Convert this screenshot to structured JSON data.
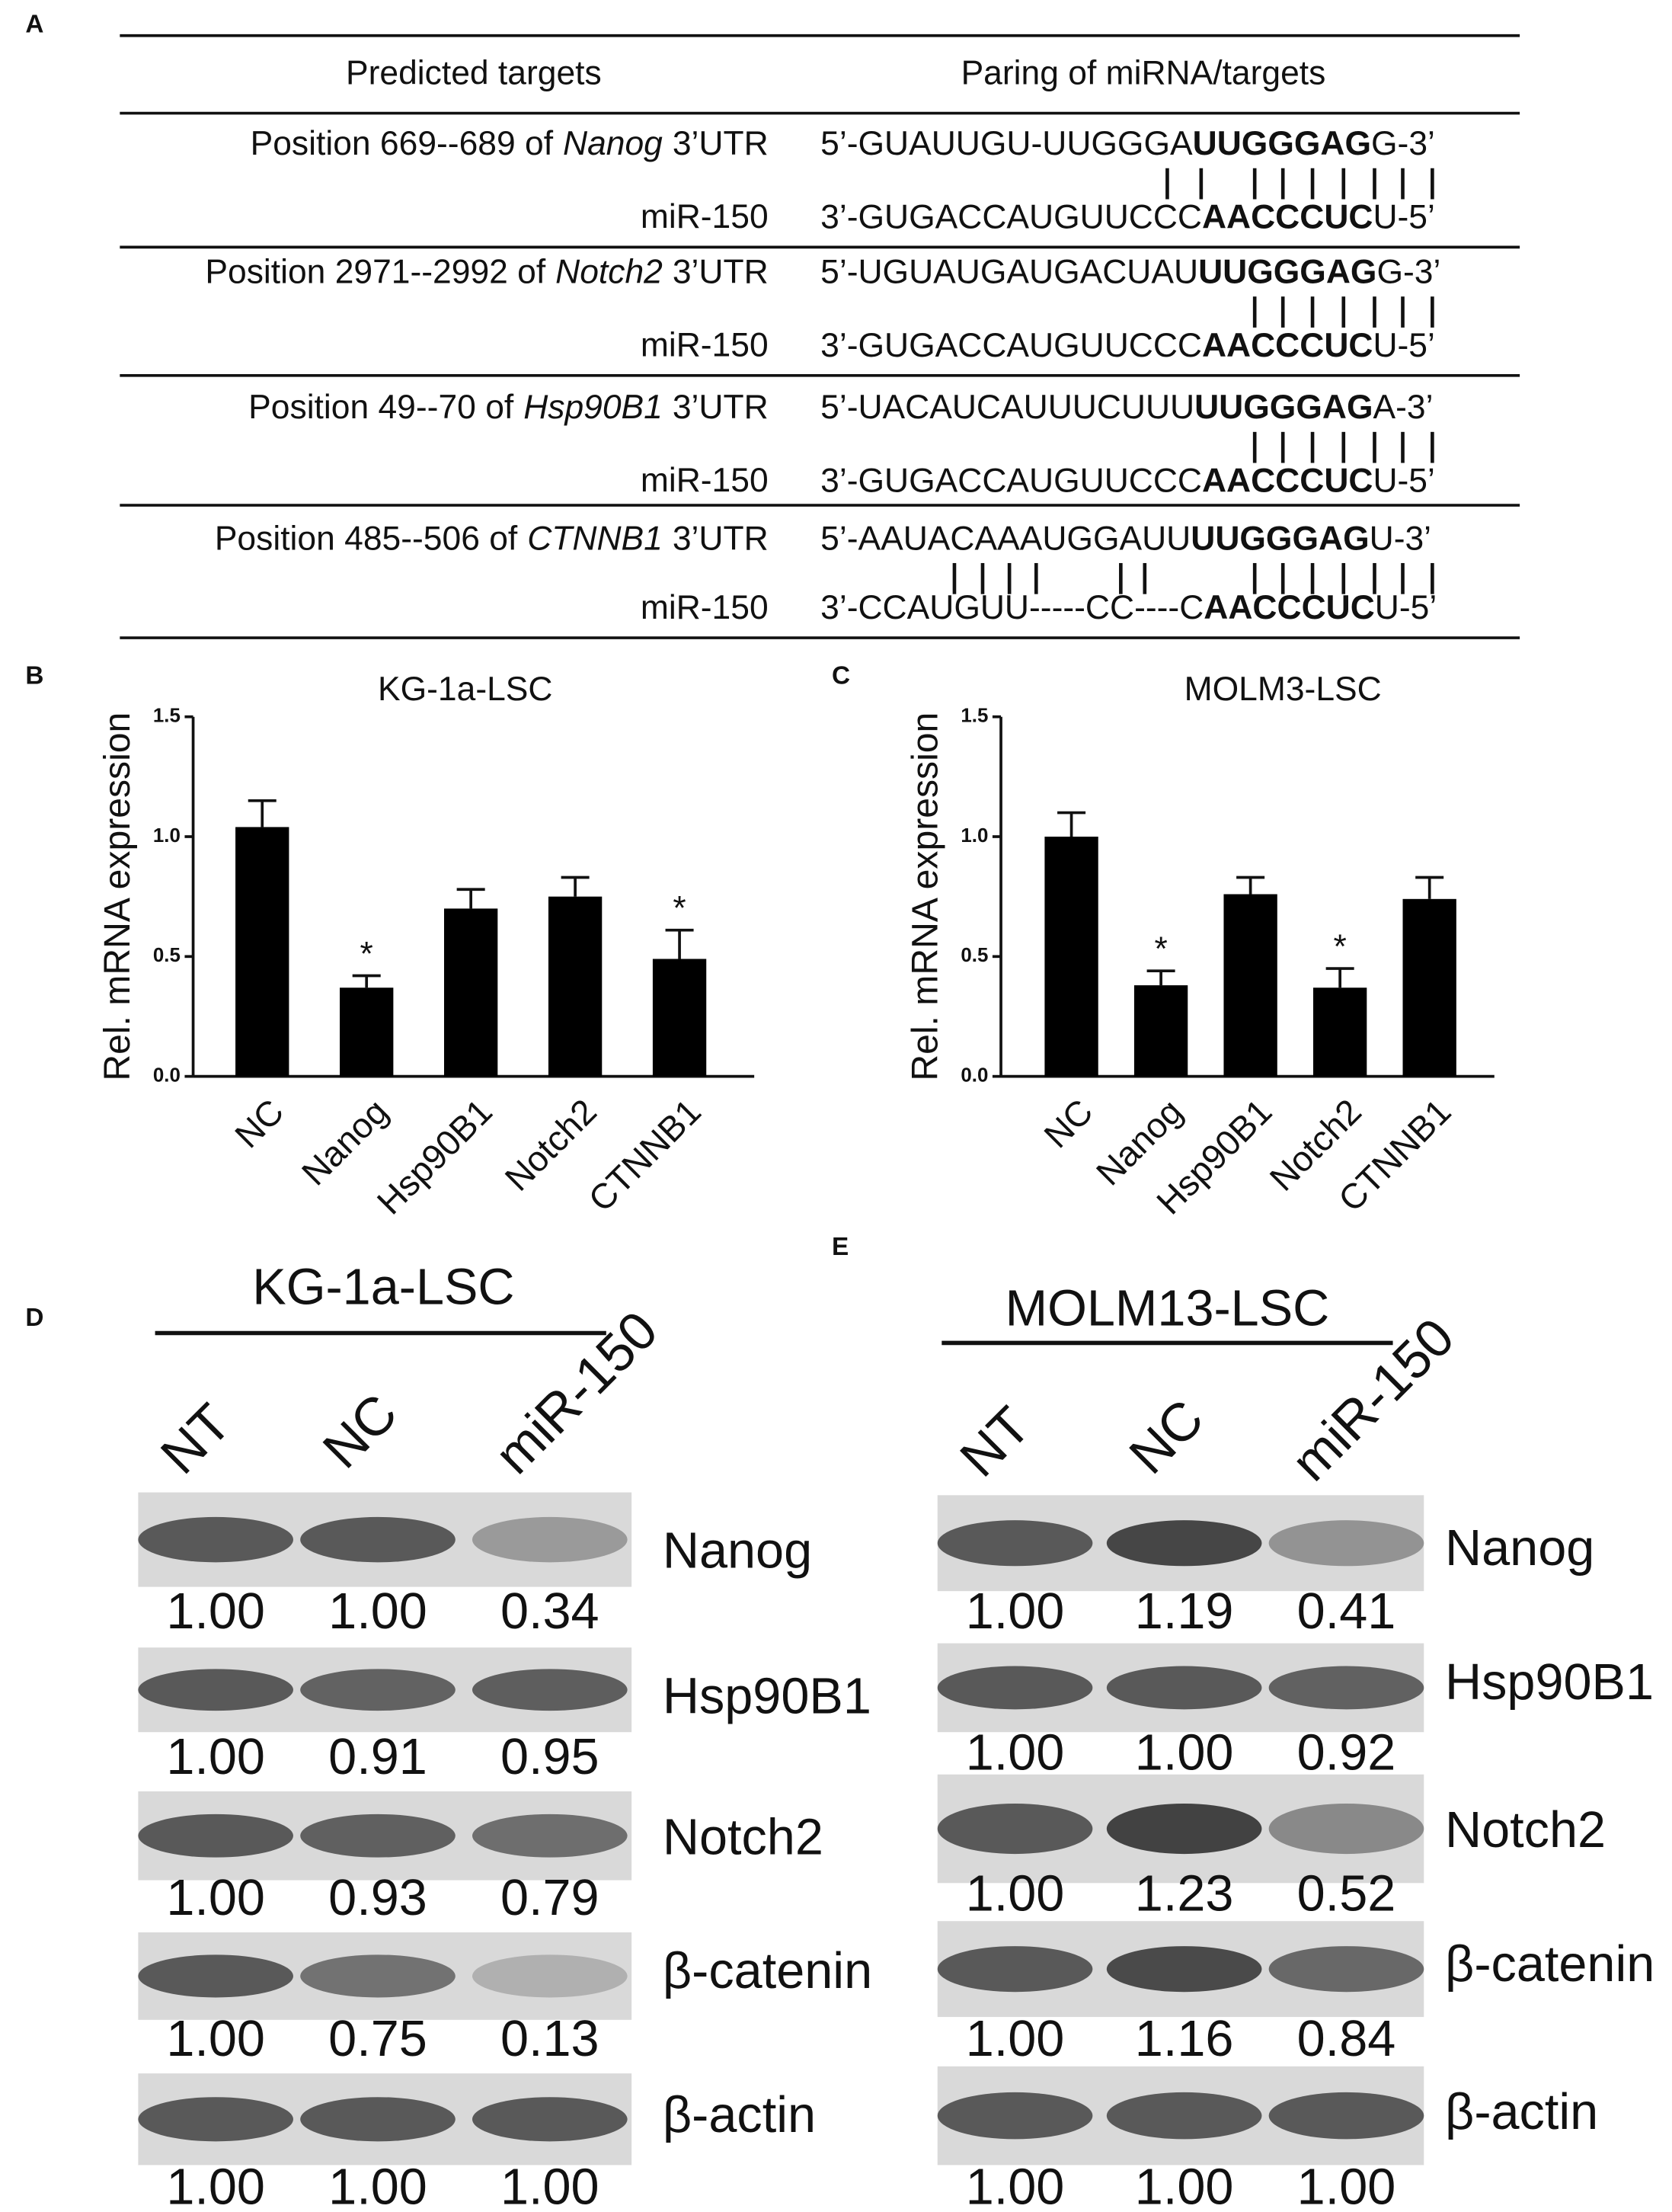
{
  "panel_labels": [
    "A",
    "B",
    "C",
    "D",
    "E"
  ],
  "table": {
    "headers": [
      "Predicted  targets",
      "Paring of miRNA/targets"
    ],
    "rows": [
      {
        "position": [
          "Position 669--689 of",
          "Nanog",
          "3’UTR"
        ],
        "mirna": "miR-150",
        "target": [
          "5’-GUAUUGU-UUGGGA",
          "UUGGGAG",
          "G-3’"
        ],
        "pairing": [
          "3’-GUGACCAUGUUCCC",
          "AACCCUC",
          "U-5’"
        ]
      },
      {
        "position": [
          "Position 2971--2992 of",
          "Notch2",
          "3’UTR"
        ],
        "mirna": "miR-150",
        "target": [
          "5’-UGUAUGAUGACUAU",
          "UUGGGAG",
          "G-3’"
        ],
        "pairing": [
          "3’-GUGACCAUGUUCCC",
          "AACCCUC",
          "U-5’"
        ]
      },
      {
        "position": [
          "Position 49--70 of",
          "Hsp90B1",
          "3’UTR"
        ],
        "mirna": "miR-150",
        "target": [
          "5’-UACAUCAUUUCUUU",
          "UUGGGAG",
          "A-3’"
        ],
        "pairing": [
          "3’-GUGACCAUGUUCCC",
          "AACCCUC",
          "U-5’"
        ]
      },
      {
        "position": [
          "Position 485--506 of",
          "CTNNB1",
          "3’UTR"
        ],
        "mirna": "miR-150",
        "target": [
          "5’-AAUACAAAUGGAUU",
          "UUGGGAG",
          "U-3’"
        ],
        "pairing": [
          "3’-CCAUGUU-----CC----C",
          "AACCCUC",
          "U-5’"
        ]
      }
    ]
  },
  "chart_data": [
    {
      "type": "bar",
      "title": "KG-1a-LSC",
      "ylabel": "Rel. mRNA expression",
      "categories": [
        "NC",
        "Nanog",
        "Hsp90B1",
        "Notch2",
        "CTNNB1"
      ],
      "values": [
        1.04,
        0.37,
        0.7,
        0.75,
        0.49
      ],
      "errors": [
        0.11,
        0.05,
        0.08,
        0.08,
        0.12
      ],
      "significance": [
        null,
        "*",
        null,
        null,
        "*"
      ],
      "color": "#000000",
      "ylim": [
        0,
        1.5
      ],
      "yticks": [
        {
          "value": 0,
          "label": "0.0"
        },
        {
          "value": 0.5,
          "label": "0.5"
        },
        {
          "value": 1,
          "label": "1.0"
        },
        {
          "value": 1.5,
          "label": "1.5"
        }
      ]
    },
    {
      "type": "bar",
      "title": "MOLM3-LSC",
      "ylabel": "Rel. mRNA expression",
      "categories": [
        "NC",
        "Nanog",
        "Hsp90B1",
        "Notch2",
        "CTNNB1"
      ],
      "values": [
        1.0,
        0.38,
        0.76,
        0.37,
        0.74
      ],
      "errors": [
        0.1,
        0.06,
        0.07,
        0.08,
        0.09
      ],
      "significance": [
        null,
        "*",
        null,
        "*",
        null
      ],
      "color": "#000000",
      "ylim": [
        0,
        1.5
      ],
      "yticks": [
        {
          "value": 0,
          "label": "0.0"
        },
        {
          "value": 0.5,
          "label": "0.5"
        },
        {
          "value": 1,
          "label": "1.0"
        },
        {
          "value": 1.5,
          "label": "1.5"
        }
      ]
    }
  ],
  "blots": [
    {
      "title": "KG-1a-LSC",
      "lanes": [
        "NT",
        "NC",
        "miR-150"
      ],
      "rows": [
        {
          "protein": "Nanog",
          "values": [
            1,
            1,
            0.34
          ],
          "value_labels": [
            "1.00",
            "1.00",
            "0.34"
          ]
        },
        {
          "protein": "Hsp90B1",
          "values": [
            1,
            0.91,
            0.95
          ],
          "value_labels": [
            "1.00",
            "0.91",
            "0.95"
          ]
        },
        {
          "protein": "Notch2",
          "values": [
            1,
            0.93,
            0.79
          ],
          "value_labels": [
            "1.00",
            "0.93",
            "0.79"
          ]
        },
        {
          "protein": "β-catenin",
          "values": [
            1,
            0.75,
            0.13
          ],
          "value_labels": [
            "1.00",
            "0.75",
            "0.13"
          ]
        },
        {
          "protein": "β-actin",
          "values": [
            1,
            1,
            1
          ],
          "value_labels": [
            "1.00",
            "1.00",
            "1.00"
          ]
        }
      ]
    },
    {
      "title": "MOLM13-LSC",
      "lanes": [
        "NT",
        "NC",
        "miR-150"
      ],
      "rows": [
        {
          "protein": "Nanog",
          "values": [
            1,
            1.19,
            0.41
          ],
          "value_labels": [
            "1.00",
            "1.19",
            "0.41"
          ]
        },
        {
          "protein": "Hsp90B1",
          "values": [
            1,
            1,
            0.92
          ],
          "value_labels": [
            "1.00",
            "1.00",
            "0.92"
          ]
        },
        {
          "protein": "Notch2",
          "values": [
            1,
            1.23,
            0.52
          ],
          "value_labels": [
            "1.00",
            "1.23",
            "0.52"
          ]
        },
        {
          "protein": "β-catenin",
          "values": [
            1,
            1.16,
            0.84
          ],
          "value_labels": [
            "1.00",
            "1.16",
            "0.84"
          ]
        },
        {
          "protein": "β-actin",
          "values": [
            1,
            1,
            1
          ],
          "value_labels": [
            "1.00",
            "1.00",
            "1.00"
          ]
        }
      ]
    }
  ]
}
